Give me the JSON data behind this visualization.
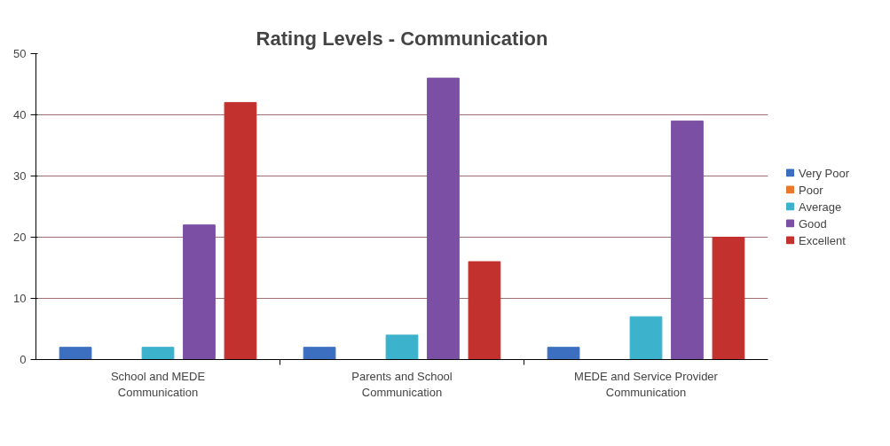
{
  "chart_data": {
    "type": "bar",
    "title": "Rating Levels - Communication",
    "categories": [
      "School and MEDE Communication",
      "Parents and School Communication",
      "MEDE and Service Provider Communication"
    ],
    "series": [
      {
        "name": "Very Poor",
        "color": "#3d6fc0",
        "values": [
          2,
          2,
          2
        ]
      },
      {
        "name": "Poor",
        "color": "#e8792c",
        "values": [
          0,
          0,
          0
        ]
      },
      {
        "name": "Average",
        "color": "#3cb2cc",
        "values": [
          2,
          4,
          7
        ]
      },
      {
        "name": "Good",
        "color": "#7b4fa3",
        "values": [
          22,
          46,
          39
        ]
      },
      {
        "name": "Excellent",
        "color": "#c3312f",
        "values": [
          42,
          16,
          20
        ]
      }
    ],
    "ylim": [
      0,
      50
    ],
    "yticks": [
      0,
      10,
      20,
      30,
      40,
      50
    ],
    "grid": "y",
    "legend": "right"
  }
}
